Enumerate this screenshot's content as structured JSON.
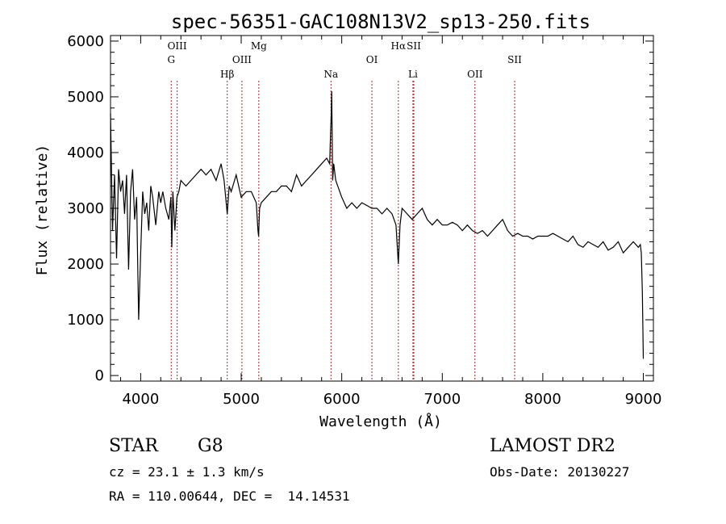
{
  "chart_data": {
    "type": "line",
    "title": "spec-56351-GAC108N13V2_sp13-250.fits",
    "xlabel": "Wavelength (Å)",
    "ylabel": "Flux (relative)",
    "xlim": [
      3700,
      9100
    ],
    "ylim": [
      -100,
      6100
    ],
    "xticks": [
      4000,
      5000,
      6000,
      7000,
      8000,
      9000
    ],
    "yticks": [
      0,
      1000,
      2000,
      3000,
      4000,
      5000,
      6000
    ],
    "grid": false,
    "series": [
      {
        "x": [
          3700,
          3720,
          3740,
          3760,
          3780,
          3800,
          3820,
          3840,
          3860,
          3880,
          3900,
          3920,
          3940,
          3960,
          3970,
          3980,
          4000,
          4020,
          4040,
          4060,
          4080,
          4100,
          4120,
          4150,
          4180,
          4200,
          4220,
          4250,
          4280,
          4300,
          4310,
          4320,
          4340,
          4360,
          4380,
          4400,
          4450,
          4500,
          4550,
          4600,
          4650,
          4700,
          4750,
          4800,
          4830,
          4861,
          4880,
          4900,
          4950,
          5000,
          5050,
          5100,
          5150,
          5167,
          5173,
          5183,
          5200,
          5250,
          5300,
          5350,
          5400,
          5450,
          5500,
          5550,
          5600,
          5650,
          5700,
          5750,
          5800,
          5850,
          5880,
          5890,
          5896,
          5900,
          5910,
          5920,
          5940,
          5960,
          6000,
          6050,
          6100,
          6150,
          6200,
          6250,
          6300,
          6350,
          6400,
          6450,
          6500,
          6540,
          6563,
          6580,
          6600,
          6650,
          6700,
          6750,
          6800,
          6850,
          6900,
          6950,
          7000,
          7050,
          7100,
          7150,
          7200,
          7250,
          7300,
          7350,
          7400,
          7450,
          7500,
          7550,
          7600,
          7650,
          7700,
          7750,
          7800,
          7850,
          7900,
          7950,
          8000,
          8050,
          8100,
          8150,
          8200,
          8250,
          8300,
          8350,
          8400,
          8450,
          8500,
          8550,
          8600,
          8650,
          8700,
          8750,
          8800,
          8850,
          8900,
          8950,
          8970,
          8980,
          8990,
          9000
        ],
        "y": [
          4700,
          2600,
          3600,
          2100,
          3700,
          3300,
          3500,
          2900,
          3600,
          1900,
          3300,
          3700,
          2800,
          3200,
          2000,
          1000,
          2200,
          3300,
          2900,
          3100,
          2600,
          3400,
          3200,
          2700,
          3300,
          3100,
          3300,
          3000,
          2800,
          3200,
          2300,
          3300,
          2600,
          3200,
          3300,
          3500,
          3400,
          3500,
          3600,
          3700,
          3600,
          3700,
          3500,
          3800,
          3500,
          2900,
          3400,
          3300,
          3600,
          3200,
          3300,
          3300,
          3100,
          2600,
          2500,
          3000,
          3100,
          3200,
          3300,
          3300,
          3400,
          3400,
          3300,
          3600,
          3400,
          3500,
          3600,
          3700,
          3800,
          3900,
          3800,
          4400,
          4700,
          5100,
          3500,
          3800,
          3500,
          3400,
          3200,
          3000,
          3100,
          3000,
          3100,
          3050,
          3000,
          3000,
          2900,
          3000,
          2900,
          2700,
          2000,
          2700,
          3000,
          2900,
          2800,
          2900,
          3000,
          2800,
          2700,
          2800,
          2700,
          2700,
          2750,
          2700,
          2600,
          2700,
          2600,
          2550,
          2600,
          2500,
          2600,
          2700,
          2800,
          2600,
          2500,
          2550,
          2500,
          2500,
          2450,
          2500,
          2500,
          2500,
          2550,
          2500,
          2450,
          2400,
          2500,
          2350,
          2300,
          2400,
          2350,
          2300,
          2400,
          2250,
          2300,
          2400,
          2200,
          2300,
          2400,
          2300,
          2350,
          2200,
          1500,
          300
        ]
      }
    ],
    "lines": [
      {
        "label": "G",
        "x": 4304,
        "row": 2
      },
      {
        "label": "OIII",
        "x": 4363,
        "row": 1
      },
      {
        "label": "Hβ",
        "x": 4861,
        "row": 3
      },
      {
        "label": "OIII",
        "x": 5007,
        "row": 2
      },
      {
        "label": "Mg",
        "x": 5175,
        "row": 1
      },
      {
        "label": "Na",
        "x": 5893,
        "row": 3
      },
      {
        "label": "OI",
        "x": 6300,
        "row": 2
      },
      {
        "label": "Hα",
        "x": 6563,
        "row": 1
      },
      {
        "label": "SII",
        "x": 6717,
        "row": 1
      },
      {
        "label": "Li",
        "x": 6708,
        "row": 3
      },
      {
        "label": "OII",
        "x": 7325,
        "row": 3
      },
      {
        "label": "SII",
        "x": 7720,
        "row": 2
      }
    ]
  },
  "info": {
    "class": "STAR",
    "subclass": "G8",
    "survey": "LAMOST DR2",
    "cz": "cz = 23.1 ± 1.3 km/s",
    "obs_date": "Obs-Date: 20130227",
    "radec": "RA = 110.00644, DEC =  14.14531"
  }
}
